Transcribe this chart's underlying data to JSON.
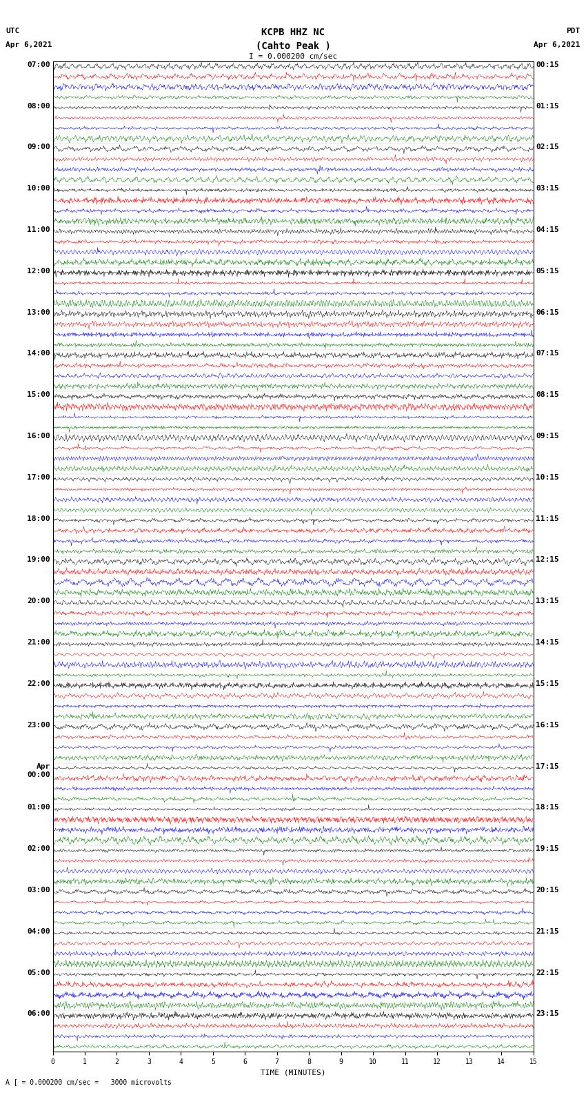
{
  "title_line1": "KCPB HHZ NC",
  "title_line2": "(Cahto Peak )",
  "scale_text": "I = 0.000200 cm/sec",
  "bottom_text": "A [ = 0.000200 cm/sec =   3000 microvolts",
  "xlabel": "TIME (MINUTES)",
  "utc_label": "UTC",
  "utc_date": "Apr 6,2021",
  "pdt_label": "PDT",
  "pdt_date": "Apr 6,2021",
  "left_times": [
    "07:00",
    "08:00",
    "09:00",
    "10:00",
    "11:00",
    "12:00",
    "13:00",
    "14:00",
    "15:00",
    "16:00",
    "17:00",
    "18:00",
    "19:00",
    "20:00",
    "21:00",
    "22:00",
    "23:00",
    "Apr|00:00",
    "01:00",
    "02:00",
    "03:00",
    "04:00",
    "05:00",
    "06:00"
  ],
  "right_times": [
    "00:15",
    "01:15",
    "02:15",
    "03:15",
    "04:15",
    "05:15",
    "06:15",
    "07:15",
    "08:15",
    "09:15",
    "10:15",
    "11:15",
    "12:15",
    "13:15",
    "14:15",
    "15:15",
    "16:15",
    "17:15",
    "18:15",
    "19:15",
    "20:15",
    "21:15",
    "22:15",
    "23:15"
  ],
  "n_rows": 24,
  "traces_per_row": 4,
  "colors": [
    "black",
    "red",
    "blue",
    "green"
  ],
  "figsize": [
    8.5,
    16.13
  ],
  "dpi": 100,
  "bg_color": "white",
  "plot_bg": "white",
  "font_family": "monospace",
  "title_fontsize": 10,
  "label_fontsize": 8,
  "tick_fontsize": 7,
  "time_label_fontsize": 8
}
